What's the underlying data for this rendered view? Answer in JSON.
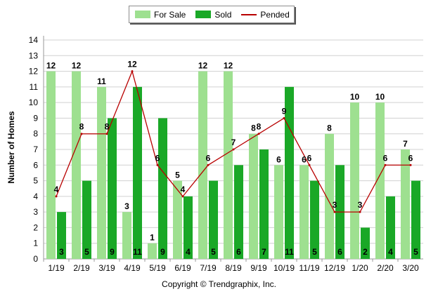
{
  "chart_data": {
    "type": "bar",
    "title": "",
    "xlabel": "",
    "ylabel": "Number of Homes",
    "ylim": [
      0,
      14
    ],
    "yticks": [
      0,
      1,
      2,
      3,
      4,
      5,
      6,
      7,
      8,
      9,
      10,
      11,
      12,
      13,
      14
    ],
    "grid": true,
    "legend_placement": "top-center",
    "categories": [
      "1/19",
      "2/19",
      "3/19",
      "4/19",
      "5/19",
      "6/19",
      "7/19",
      "8/19",
      "9/19",
      "10/19",
      "11/19",
      "12/19",
      "1/20",
      "2/20",
      "3/20"
    ],
    "series": [
      {
        "name": "For Sale",
        "kind": "bar",
        "color": "#9ee090",
        "values": [
          12,
          12,
          11,
          3,
          1,
          5,
          12,
          12,
          8,
          6,
          6,
          8,
          10,
          10,
          7
        ]
      },
      {
        "name": "Sold",
        "kind": "bar",
        "color": "#1aa827",
        "values": [
          3,
          5,
          9,
          11,
          9,
          4,
          5,
          6,
          7,
          11,
          5,
          6,
          2,
          4,
          5
        ]
      },
      {
        "name": "Pended",
        "kind": "line",
        "color": "#b80000",
        "values": [
          4,
          8,
          8,
          12,
          6,
          4,
          6,
          7,
          8,
          9,
          6,
          3,
          3,
          6,
          6
        ]
      }
    ]
  },
  "footer": {
    "copyright": "Copyright © Trendgraphix, Inc."
  }
}
